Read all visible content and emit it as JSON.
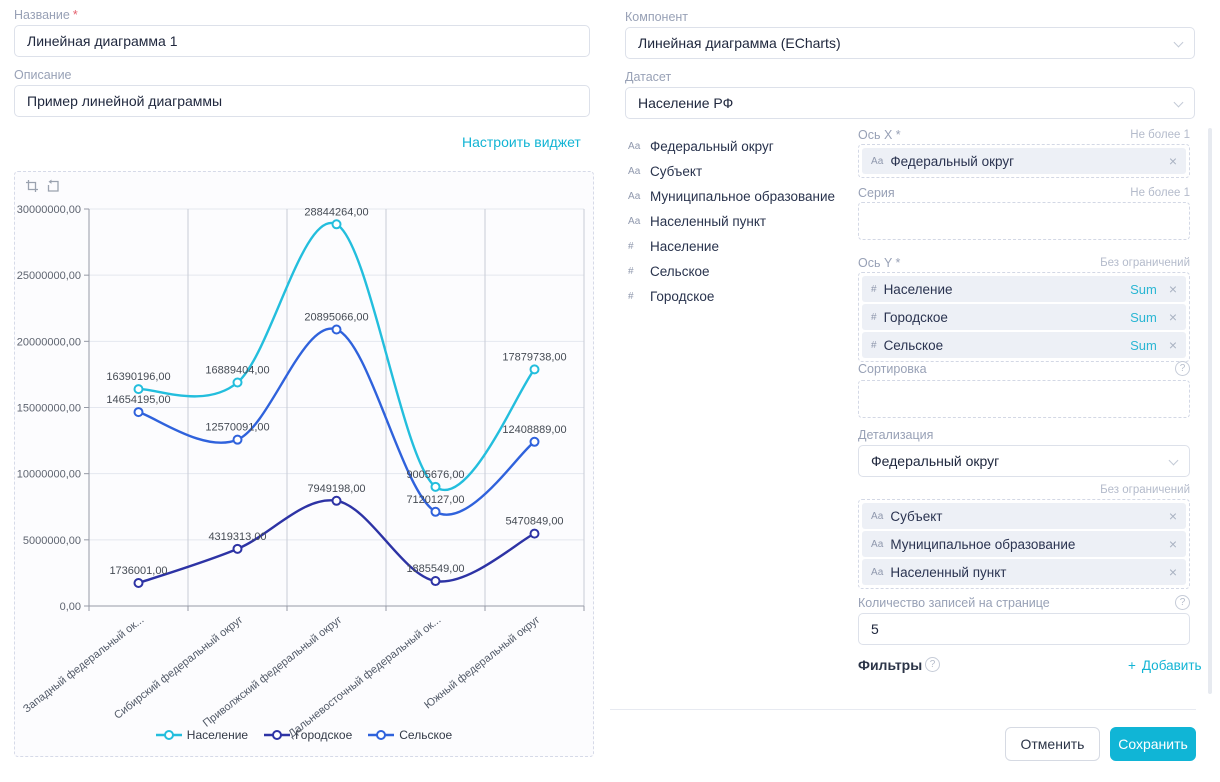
{
  "form": {
    "name_label": "Название",
    "required_mark": "*",
    "name_value": "Линейная диаграмма 1",
    "description_label": "Описание",
    "description_value": "Пример линейной диаграммы",
    "configure_link": "Настроить виджет"
  },
  "component": {
    "label": "Компонент",
    "value": "Линейная диаграмма (ECharts)"
  },
  "dataset": {
    "label": "Датасет",
    "value": "Население РФ"
  },
  "fields": [
    {
      "prefix": "Аа",
      "name": "Федеральный округ"
    },
    {
      "prefix": "Аа",
      "name": "Субъект"
    },
    {
      "prefix": "Аа",
      "name": "Муниципальное образование"
    },
    {
      "prefix": "Аа",
      "name": "Населенный пункт"
    },
    {
      "prefix": "#",
      "name": "Население"
    },
    {
      "prefix": "#",
      "name": "Сельское"
    },
    {
      "prefix": "#",
      "name": "Городское"
    }
  ],
  "config": {
    "x_axis": {
      "label": "Ось X *",
      "hint": "Не более 1",
      "chip": {
        "prefix": "Аа",
        "name": "Федеральный округ"
      }
    },
    "series": {
      "label": "Серия",
      "hint": "Не более 1"
    },
    "y_axis": {
      "label": "Ось Y *",
      "hint": "Без ограничений",
      "chips": [
        {
          "prefix": "#",
          "name": "Население",
          "agg": "Sum"
        },
        {
          "prefix": "#",
          "name": "Городское",
          "agg": "Sum"
        },
        {
          "prefix": "#",
          "name": "Сельское",
          "agg": "Sum"
        }
      ]
    },
    "sorting": {
      "label": "Сортировка"
    },
    "detail": {
      "label": "Детализация",
      "value": "Федеральный округ",
      "hint": "Без ограничений",
      "chips": [
        {
          "prefix": "Аа",
          "name": "Субъект"
        },
        {
          "prefix": "Аа",
          "name": "Муниципальное образование"
        },
        {
          "prefix": "Аа",
          "name": "Населенный пункт"
        }
      ]
    },
    "page_size": {
      "label": "Количество записей на странице",
      "value": "5"
    },
    "filters": {
      "label": "Фильтры",
      "add_label": "Добавить"
    }
  },
  "buttons": {
    "cancel": "Отменить",
    "save": "Сохранить"
  },
  "icons": {
    "remove": "×",
    "help": "?",
    "plus": "+"
  },
  "chart_data": {
    "type": "line",
    "categories": [
      "Западный федеральный ок...",
      "Сибирский федеральный округ",
      "Приволжский федеральный округ",
      "Дальневосточный федеральный ок...",
      "Южный федеральный округ"
    ],
    "series": [
      {
        "name": "Население",
        "color": "#23bedd",
        "values": [
          16390196,
          16889404,
          28844264,
          9005676,
          17879738
        ]
      },
      {
        "name": "Городское",
        "color": "#2d33a5",
        "values": [
          1736001,
          4319313,
          7949198,
          1885549,
          5470849
        ]
      },
      {
        "name": "Сельское",
        "color": "#2f62dc",
        "values": [
          14654195,
          12570091,
          20895066,
          7120127,
          12408889
        ]
      }
    ],
    "ylim": [
      0,
      30000000
    ],
    "y_tick_labels": [
      "0,00",
      "5000000,00",
      "10000000,00",
      "15000000,00",
      "20000000,00",
      "25000000,00",
      "30000000,00"
    ],
    "value_suffix": ",00",
    "grid": true,
    "smooth": true,
    "legend_position": "bottom",
    "x_label_rotate": -38
  }
}
